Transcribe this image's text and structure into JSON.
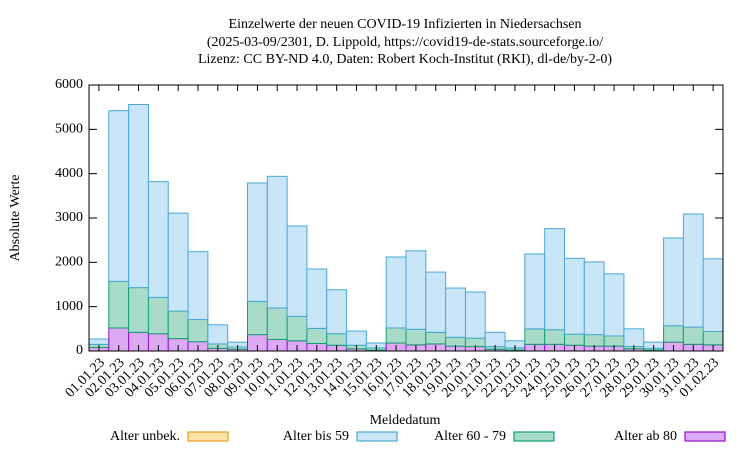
{
  "chart_data": {
    "type": "bar",
    "stacked": true,
    "title": [
      "Einzelwerte der neuen COVID-19 Infizierten in Niedersachsen",
      "(2025-03-09/2301, D. Lippold, https://covid19-de-stats.sourceforge.io/",
      "Lizenz: CC BY-ND 4.0, Daten: Robert Koch-Institut (RKI), dl-de/by-2-0)"
    ],
    "x_label": "Meldedatum",
    "y_label": "Absolute Werte",
    "categories": [
      "01.01.23",
      "02.01.23",
      "03.01.23",
      "04.01.23",
      "05.01.23",
      "06.01.23",
      "07.01.23",
      "08.01.23",
      "09.01.23",
      "10.01.23",
      "11.01.23",
      "12.01.23",
      "13.01.23",
      "14.01.23",
      "15.01.23",
      "16.01.23",
      "17.01.23",
      "18.01.23",
      "19.01.23",
      "20.01.23",
      "21.01.23",
      "22.01.23",
      "23.01.23",
      "24.01.23",
      "25.01.23",
      "26.01.23",
      "27.01.23",
      "28.01.23",
      "29.01.23",
      "30.01.23",
      "31.01.23",
      "01.02.23"
    ],
    "series": [
      {
        "name": "Alter unbek.",
        "color": "#fde3a7",
        "edge": "#e0a020",
        "values": [
          0,
          0,
          0,
          0,
          0,
          0,
          0,
          0,
          0,
          0,
          0,
          0,
          0,
          0,
          0,
          0,
          0,
          0,
          0,
          0,
          0,
          0,
          0,
          0,
          0,
          0,
          0,
          0,
          0,
          0,
          0,
          0
        ]
      },
      {
        "name": "Alter bis 59",
        "color": "#c8e6f8",
        "edge": "#4aa8d8",
        "values": [
          120,
          3850,
          4130,
          2610,
          2210,
          1530,
          430,
          110,
          2670,
          2970,
          2040,
          1340,
          990,
          320,
          110,
          1600,
          1770,
          1360,
          1110,
          1040,
          320,
          160,
          1690,
          2280,
          1710,
          1640,
          1400,
          400,
          140,
          1980,
          2550,
          1640
        ]
      },
      {
        "name": "Alter 60 - 79",
        "color": "#a8dcc8",
        "edge": "#10a070",
        "values": [
          70,
          1050,
          1010,
          820,
          620,
          500,
          100,
          50,
          750,
          710,
          550,
          340,
          260,
          80,
          50,
          340,
          350,
          260,
          200,
          190,
          60,
          50,
          350,
          330,
          250,
          260,
          230,
          50,
          40,
          370,
          390,
          300
        ]
      },
      {
        "name": "Alter ab 80",
        "color": "#dcaaf2",
        "edge": "#9010d0",
        "values": [
          80,
          520,
          420,
          390,
          280,
          210,
          60,
          40,
          370,
          260,
          230,
          170,
          130,
          50,
          20,
          180,
          140,
          160,
          110,
          100,
          40,
          20,
          150,
          150,
          130,
          110,
          110,
          50,
          20,
          200,
          150,
          140
        ]
      }
    ],
    "ylim": [
      0,
      6000
    ],
    "yticks": [
      0,
      1000,
      2000,
      3000,
      4000,
      5000,
      6000
    ],
    "legend": "bottom"
  }
}
